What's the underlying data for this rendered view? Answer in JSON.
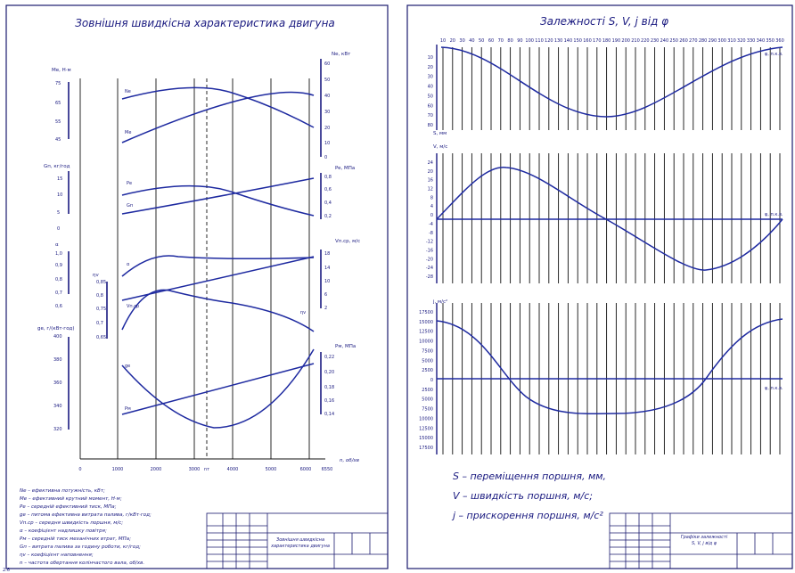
{
  "colors": {
    "ink": "#1a1a80",
    "curve": "#1e2aa0",
    "frame": "#1a1a6e",
    "grid": "#111111"
  },
  "left_sheet": {
    "title": "Зовнішня швидкісна характеристика двигуна",
    "x_axis": {
      "label": "n, об/хв",
      "ticks": [
        "0",
        "1000",
        "2000",
        "3000",
        "4000",
        "5000",
        "6000",
        "6550"
      ],
      "nt_label": "nт"
    },
    "left_scales": [
      {
        "label": "Mе, Н·м",
        "ticks": [
          "75",
          "65",
          "55",
          "45"
        ]
      },
      {
        "label": "Gп, кг/год",
        "ticks": [
          "15",
          "10",
          "5",
          "0"
        ]
      },
      {
        "label": "α",
        "ticks": [
          "1,0",
          "0,9",
          "0,8",
          "0,7",
          "0,6"
        ]
      },
      {
        "label": "ηv",
        "ticks": [
          "0,85",
          "0,8",
          "0,75",
          "0,7",
          "0,65"
        ]
      },
      {
        "label": "gе, г/(кВт·год)",
        "ticks": [
          "400",
          "380",
          "360",
          "340",
          "320"
        ]
      }
    ],
    "right_scales": [
      {
        "label": "Nе, кВт",
        "ticks": [
          "60",
          "50",
          "40",
          "30",
          "20",
          "10",
          "0"
        ]
      },
      {
        "label": "Pe, МПа",
        "ticks": [
          "0,8",
          "0,6",
          "0,4",
          "0,2"
        ]
      },
      {
        "label": "Vп.ср, м/с",
        "ticks": [
          "18",
          "14",
          "10",
          "6",
          "2"
        ]
      },
      {
        "label": "Pм, МПа",
        "ticks": [
          "0,22",
          "0,20",
          "0,18",
          "0,16",
          "0,14"
        ]
      }
    ],
    "curve_labels": [
      "Nе",
      "Mе",
      "Pе",
      "Gп",
      "α",
      "Vп.ср",
      "ηv",
      "Pм",
      "gе"
    ],
    "legend": [
      "Nе – ефективна потужність, кВт;",
      "Mе – ефективний крутний момент, Н·м;",
      "Pе – середній ефективний тиск, МПа;",
      "gе – питома ефективна витрата палива, г/кВт·год;",
      "Vп.ср – середня швидкість поршня, м/с;",
      "α – коефіцієнт надлишку повітря;",
      "Pм – середній тиск механічних втрат, МПа;",
      "Gп – витрата палива за годину роботи, кг/год;",
      "ηv – коефіцієнт наповнення;",
      "n – частота обертання колінчастого вала, об/хв."
    ],
    "stamp": {
      "title_line1": "Зовнішня швидкісна",
      "title_line2": "характеристика двигуна"
    }
  },
  "right_sheet": {
    "title": "Залежності S, V, j від φ",
    "phi_ticks": [
      "10",
      "20",
      "30",
      "40",
      "50",
      "60",
      "70",
      "80",
      "90",
      "100",
      "110",
      "120",
      "130",
      "140",
      "150",
      "160",
      "170",
      "180",
      "190",
      "200",
      "210",
      "220",
      "230",
      "240",
      "250",
      "260",
      "270",
      "280",
      "290",
      "300",
      "310",
      "320",
      "330",
      "340",
      "350",
      "360"
    ],
    "s_plot": {
      "axis_label": "S, мм",
      "phi_label": "φ, п.к.в.",
      "ticks": [
        "10",
        "20",
        "30",
        "40",
        "50",
        "60",
        "70",
        "80"
      ]
    },
    "v_plot": {
      "axis_label": "V, м/с",
      "phi_label": "φ, п.к.в.",
      "ticks": [
        "24",
        "20",
        "16",
        "12",
        "8",
        "4",
        "0",
        "-4",
        "-8",
        "-12",
        "-16",
        "-20",
        "-24",
        "-28"
      ]
    },
    "j_plot": {
      "axis_label": "j, м/с²",
      "phi_label": "φ, п.к.в.",
      "ticks": [
        "17500",
        "15000",
        "12500",
        "10000",
        "7500",
        "5000",
        "2500",
        "0",
        "2500",
        "5000",
        "7500",
        "10000",
        "12500",
        "15000",
        "17500"
      ]
    },
    "legend": [
      "S – переміщення поршня, мм,",
      "V – швидкість поршня, м/с;",
      "j – прискорення поршня, м/с²"
    ],
    "stamp": {
      "title_line1": "Графіки залежності",
      "title_line2": "S, V, j від φ"
    }
  },
  "corner_mark": "2.6"
}
